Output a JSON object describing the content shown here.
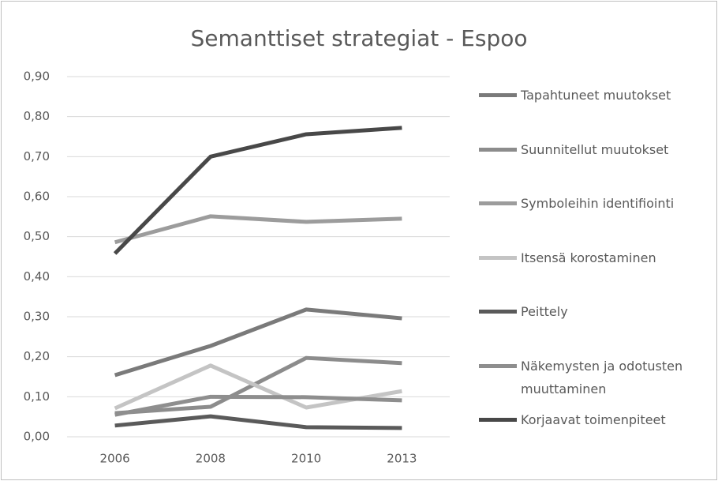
{
  "chart_data": {
    "type": "line",
    "title": "Semanttiset strategiat - Espoo",
    "categories": [
      "2006",
      "2008",
      "2010",
      "2013"
    ],
    "series": [
      {
        "name": "Tapahtuneet muutokset",
        "color": "#7a7a7a",
        "values": [
          0.154,
          0.227,
          0.318,
          0.296
        ]
      },
      {
        "name": "Suunnitellut muutokset",
        "color": "#8c8c8c",
        "values": [
          0.059,
          0.075,
          0.197,
          0.184
        ]
      },
      {
        "name": "Symboleihin identifiointi",
        "color": "#9c9c9c",
        "values": [
          0.486,
          0.551,
          0.537,
          0.545
        ]
      },
      {
        "name": "Itsensä korostaminen",
        "color": "#c4c4c4",
        "values": [
          0.071,
          0.178,
          0.073,
          0.114
        ]
      },
      {
        "name": "Peittely",
        "color": "#5a5a5a",
        "values": [
          0.028,
          0.051,
          0.024,
          0.022
        ]
      },
      {
        "name": "Näkemysten ja odotusten muuttaminen",
        "color": "#8e8e8e",
        "values": [
          0.055,
          0.1,
          0.099,
          0.091
        ]
      },
      {
        "name": "Korjaavat toimenpiteet",
        "color": "#484848",
        "values": [
          0.458,
          0.7,
          0.756,
          0.772
        ]
      }
    ],
    "ylim": [
      0,
      0.9
    ],
    "yticks": [
      {
        "value": 0,
        "label": "0,00"
      },
      {
        "value": 0.1,
        "label": "0,10"
      },
      {
        "value": 0.2,
        "label": "0,20"
      },
      {
        "value": 0.3,
        "label": "0,30"
      },
      {
        "value": 0.4,
        "label": "0,40"
      },
      {
        "value": 0.5,
        "label": "0,50"
      },
      {
        "value": 0.6,
        "label": "0,60"
      },
      {
        "value": 0.7,
        "label": "0,70"
      },
      {
        "value": 0.8,
        "label": "0,80"
      },
      {
        "value": 0.9,
        "label": "0,90"
      }
    ],
    "grid": true,
    "legend": "right"
  }
}
